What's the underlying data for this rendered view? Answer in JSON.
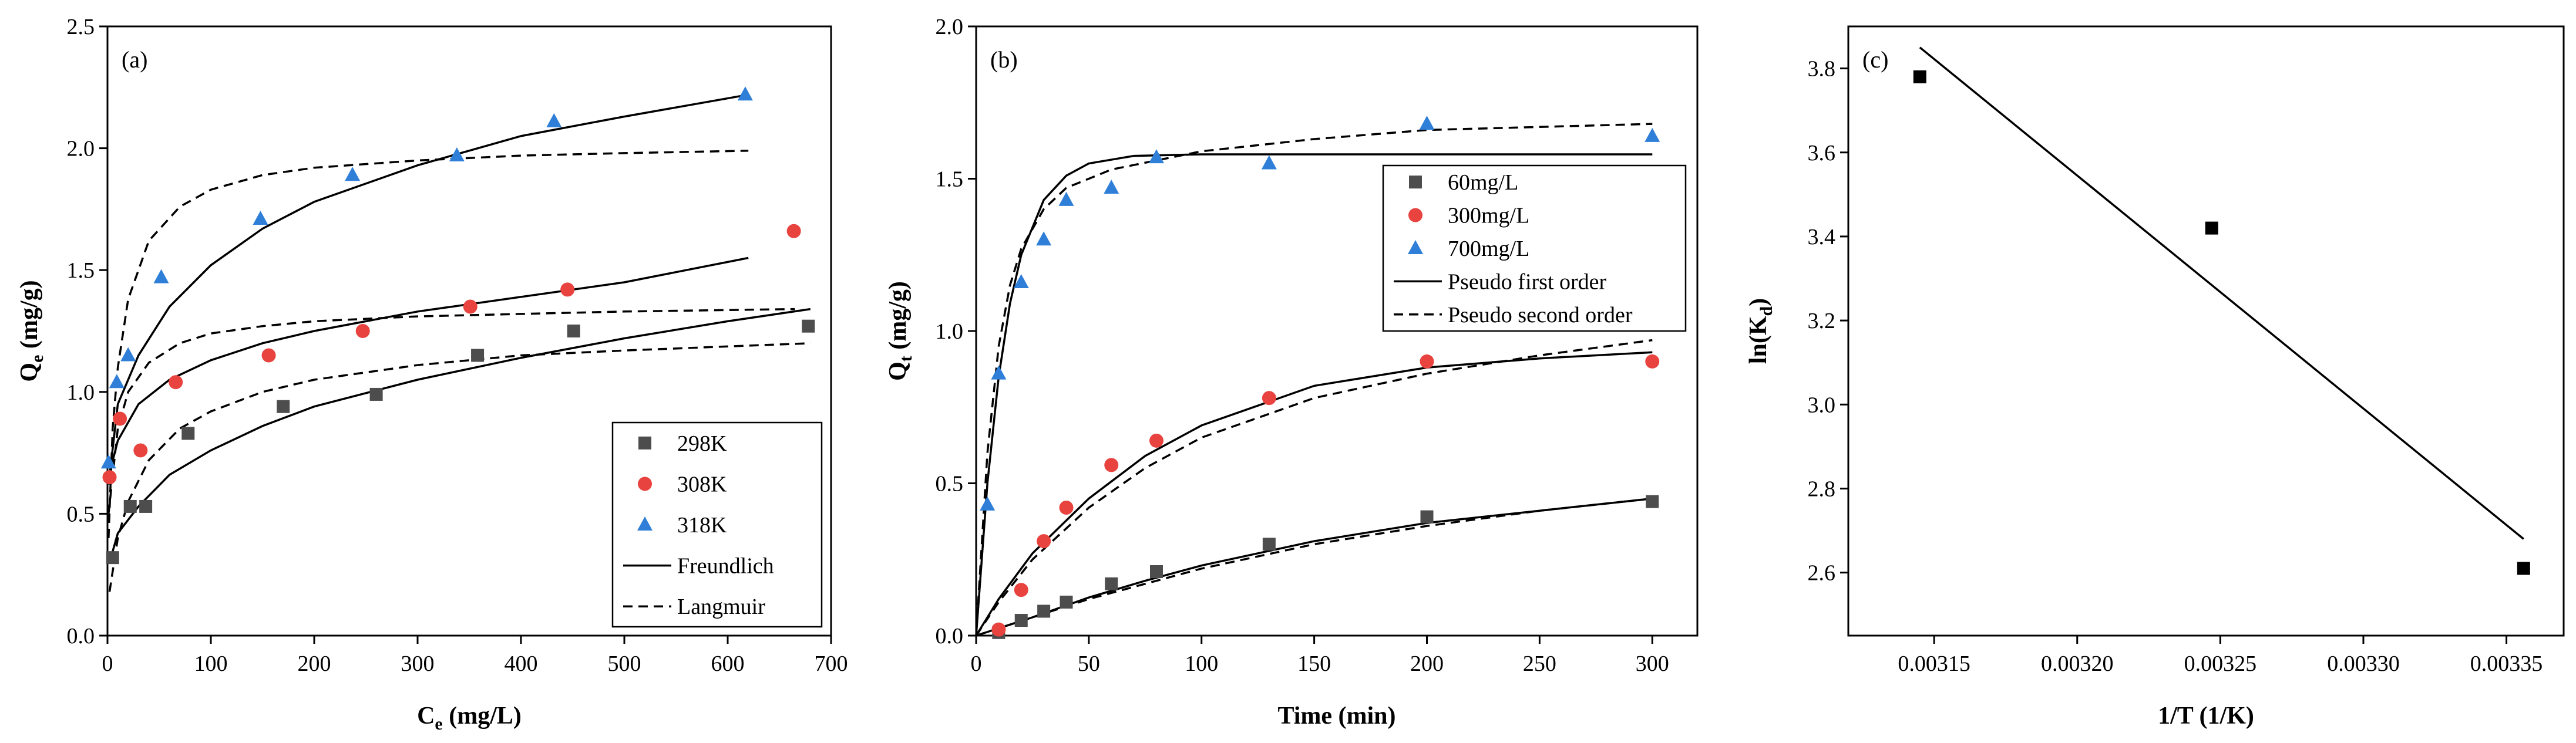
{
  "chart_data": [
    {
      "type": "scatter",
      "panel_label": "(a)",
      "xlabel": "C",
      "xlabel_sub": "e",
      "xlabel_unit": " (mg/L)",
      "ylabel": "Q",
      "ylabel_sub": "e",
      "ylabel_unit": " (mg/g)",
      "xlim": [
        0,
        700
      ],
      "ylim": [
        0,
        2.5
      ],
      "xticks": [
        "0",
        "100",
        "200",
        "300",
        "400",
        "500",
        "600",
        "700"
      ],
      "yticks": [
        "0.0",
        "0.5",
        "1.0",
        "1.5",
        "2.0",
        "2.5"
      ],
      "grid": false,
      "legend_position": "bottom-right",
      "series": [
        {
          "name": "298K",
          "marker": "square",
          "color": "#4d4d4d",
          "points": [
            [
              5,
              0.32
            ],
            [
              22,
              0.53
            ],
            [
              37,
              0.53
            ],
            [
              78,
              0.83
            ],
            [
              170,
              0.94
            ],
            [
              260,
              0.99
            ],
            [
              358,
              1.15
            ],
            [
              451,
              1.25
            ],
            [
              678,
              1.27
            ]
          ]
        },
        {
          "name": "308K",
          "marker": "circle",
          "color": "#e8433f",
          "points": [
            [
              2,
              0.65
            ],
            [
              12,
              0.89
            ],
            [
              32,
              0.76
            ],
            [
              66,
              1.04
            ],
            [
              156,
              1.15
            ],
            [
              247,
              1.25
            ],
            [
              351,
              1.35
            ],
            [
              445,
              1.42
            ],
            [
              664,
              1.66
            ]
          ]
        },
        {
          "name": "318K",
          "marker": "triangle",
          "color": "#2f7fd8",
          "points": [
            [
              1,
              0.71
            ],
            [
              9,
              1.04
            ],
            [
              20,
              1.15
            ],
            [
              52,
              1.47
            ],
            [
              148,
              1.71
            ],
            [
              237,
              1.89
            ],
            [
              338,
              1.97
            ],
            [
              432,
              2.11
            ],
            [
              617,
              2.22
            ]
          ]
        }
      ],
      "fit_lines": [
        {
          "name": "Freundlich",
          "style": "solid",
          "segments": [
            {
              "points": [
                [
                  2,
                  0.3
                ],
                [
                  10,
                  0.42
                ],
                [
                  30,
                  0.53
                ],
                [
                  60,
                  0.66
                ],
                [
                  100,
                  0.76
                ],
                [
                  150,
                  0.86
                ],
                [
                  200,
                  0.94
                ],
                [
                  300,
                  1.05
                ],
                [
                  400,
                  1.14
                ],
                [
                  500,
                  1.22
                ],
                [
                  600,
                  1.29
                ],
                [
                  680,
                  1.34
                ]
              ]
            },
            {
              "points": [
                [
                  1,
                  0.65
                ],
                [
                  10,
                  0.8
                ],
                [
                  30,
                  0.95
                ],
                [
                  60,
                  1.05
                ],
                [
                  100,
                  1.13
                ],
                [
                  150,
                  1.2
                ],
                [
                  200,
                  1.25
                ],
                [
                  300,
                  1.33
                ],
                [
                  400,
                  1.39
                ],
                [
                  500,
                  1.45
                ],
                [
                  620,
                  1.55
                ]
              ]
            },
            {
              "points": [
                [
                  1,
                  0.62
                ],
                [
                  10,
                  0.95
                ],
                [
                  30,
                  1.15
                ],
                [
                  60,
                  1.35
                ],
                [
                  100,
                  1.52
                ],
                [
                  150,
                  1.67
                ],
                [
                  200,
                  1.78
                ],
                [
                  300,
                  1.93
                ],
                [
                  400,
                  2.05
                ],
                [
                  500,
                  2.13
                ],
                [
                  620,
                  2.22
                ]
              ]
            }
          ]
        },
        {
          "name": "Langmuir",
          "style": "dashed",
          "segments": [
            {
              "points": [
                [
                  2,
                  0.18
                ],
                [
                  10,
                  0.4
                ],
                [
                  20,
                  0.55
                ],
                [
                  40,
                  0.72
                ],
                [
                  70,
                  0.85
                ],
                [
                  100,
                  0.92
                ],
                [
                  150,
                  1.0
                ],
                [
                  200,
                  1.05
                ],
                [
                  300,
                  1.11
                ],
                [
                  400,
                  1.15
                ],
                [
                  500,
                  1.17
                ],
                [
                  680,
                  1.2
                ]
              ]
            },
            {
              "points": [
                [
                  1,
                  0.5
                ],
                [
                  10,
                  0.85
                ],
                [
                  20,
                  1.0
                ],
                [
                  40,
                  1.12
                ],
                [
                  70,
                  1.2
                ],
                [
                  100,
                  1.24
                ],
                [
                  150,
                  1.27
                ],
                [
                  200,
                  1.29
                ],
                [
                  300,
                  1.31
                ],
                [
                  400,
                  1.32
                ],
                [
                  500,
                  1.33
                ],
                [
                  665,
                  1.34
                ]
              ]
            },
            {
              "points": [
                [
                  1,
                  0.4
                ],
                [
                  5,
                  0.85
                ],
                [
                  10,
                  1.1
                ],
                [
                  20,
                  1.38
                ],
                [
                  40,
                  1.62
                ],
                [
                  70,
                  1.76
                ],
                [
                  100,
                  1.83
                ],
                [
                  150,
                  1.89
                ],
                [
                  200,
                  1.92
                ],
                [
                  300,
                  1.95
                ],
                [
                  400,
                  1.97
                ],
                [
                  500,
                  1.98
                ],
                [
                  620,
                  1.99
                ]
              ]
            }
          ]
        }
      ]
    },
    {
      "type": "scatter",
      "panel_label": "(b)",
      "xlabel": "Time (min)",
      "ylabel": "Q",
      "ylabel_sub": "t",
      "ylabel_unit": " (mg/g)",
      "xlim": [
        0,
        320
      ],
      "ylim": [
        0,
        2.0
      ],
      "xticks": [
        "0",
        "50",
        "100",
        "150",
        "200",
        "250",
        "300"
      ],
      "yticks": [
        "0.0",
        "0.5",
        "1.0",
        "1.5",
        "2.0"
      ],
      "grid": false,
      "legend_position": "top-right",
      "series": [
        {
          "name": "60mg/L",
          "marker": "square",
          "color": "#4d4d4d",
          "points": [
            [
              10,
              0.01
            ],
            [
              20,
              0.05
            ],
            [
              30,
              0.08
            ],
            [
              40,
              0.11
            ],
            [
              60,
              0.17
            ],
            [
              80,
              0.21
            ],
            [
              130,
              0.3
            ],
            [
              200,
              0.39
            ],
            [
              300,
              0.44
            ]
          ]
        },
        {
          "name": "300mg/L",
          "marker": "circle",
          "color": "#e8433f",
          "points": [
            [
              10,
              0.02
            ],
            [
              20,
              0.15
            ],
            [
              30,
              0.31
            ],
            [
              40,
              0.42
            ],
            [
              60,
              0.56
            ],
            [
              80,
              0.64
            ],
            [
              130,
              0.78
            ],
            [
              200,
              0.9
            ],
            [
              300,
              0.9
            ]
          ]
        },
        {
          "name": "700mg/L",
          "marker": "triangle",
          "color": "#2f7fd8",
          "points": [
            [
              5,
              0.43
            ],
            [
              10,
              0.86
            ],
            [
              20,
              1.16
            ],
            [
              30,
              1.3
            ],
            [
              40,
              1.43
            ],
            [
              60,
              1.47
            ],
            [
              80,
              1.57
            ],
            [
              130,
              1.55
            ],
            [
              200,
              1.68
            ],
            [
              300,
              1.64
            ]
          ]
        }
      ],
      "fit_lines": [
        {
          "name": "Pseudo first order",
          "style": "solid",
          "segments": [
            {
              "points": [
                [
                  0,
                  0
                ],
                [
                  25,
                  0.06
                ],
                [
                  50,
                  0.125
                ],
                [
                  75,
                  0.18
                ],
                [
                  100,
                  0.23
                ],
                [
                  150,
                  0.31
                ],
                [
                  200,
                  0.37
                ],
                [
                  250,
                  0.41
                ],
                [
                  300,
                  0.45
                ]
              ]
            },
            {
              "points": [
                [
                  0,
                  0
                ],
                [
                  10,
                  0.12
                ],
                [
                  25,
                  0.27
                ],
                [
                  50,
                  0.45
                ],
                [
                  75,
                  0.59
                ],
                [
                  100,
                  0.69
                ],
                [
                  150,
                  0.82
                ],
                [
                  200,
                  0.88
                ],
                [
                  250,
                  0.91
                ],
                [
                  300,
                  0.93
                ]
              ]
            },
            {
              "points": [
                [
                  0,
                  0
                ],
                [
                  5,
                  0.5
                ],
                [
                  10,
                  0.85
                ],
                [
                  15,
                  1.09
                ],
                [
                  20,
                  1.25
                ],
                [
                  30,
                  1.43
                ],
                [
                  40,
                  1.51
                ],
                [
                  50,
                  1.55
                ],
                [
                  70,
                  1.575
                ],
                [
                  100,
                  1.58
                ],
                [
                  300,
                  1.58
                ]
              ]
            }
          ]
        },
        {
          "name": "Pseudo second order",
          "style": "dashed",
          "segments": [
            {
              "points": [
                [
                  0,
                  0
                ],
                [
                  25,
                  0.06
                ],
                [
                  50,
                  0.12
                ],
                [
                  75,
                  0.17
                ],
                [
                  100,
                  0.22
                ],
                [
                  150,
                  0.3
                ],
                [
                  200,
                  0.36
                ],
                [
                  250,
                  0.41
                ],
                [
                  300,
                  0.45
                ]
              ]
            },
            {
              "points": [
                [
                  0,
                  0
                ],
                [
                  10,
                  0.11
                ],
                [
                  25,
                  0.25
                ],
                [
                  50,
                  0.42
                ],
                [
                  75,
                  0.55
                ],
                [
                  100,
                  0.65
                ],
                [
                  150,
                  0.78
                ],
                [
                  200,
                  0.86
                ],
                [
                  250,
                  0.92
                ],
                [
                  300,
                  0.97
                ]
              ]
            },
            {
              "points": [
                [
                  0,
                  0
                ],
                [
                  5,
                  0.6
                ],
                [
                  10,
                  0.95
                ],
                [
                  15,
                  1.15
                ],
                [
                  20,
                  1.27
                ],
                [
                  30,
                  1.4
                ],
                [
                  40,
                  1.47
                ],
                [
                  60,
                  1.53
                ],
                [
                  100,
                  1.59
                ],
                [
                  150,
                  1.63
                ],
                [
                  200,
                  1.66
                ],
                [
                  250,
                  1.67
                ],
                [
                  300,
                  1.68
                ]
              ]
            }
          ]
        }
      ]
    },
    {
      "type": "scatter",
      "panel_label": "(c)",
      "xlabel": "1/T (1/K)",
      "ylabel": "ln(K",
      "ylabel_sub": "d",
      "ylabel_unit": ")",
      "xlim": [
        0.00312,
        0.00337
      ],
      "ylim": [
        2.45,
        3.9
      ],
      "xticks": [
        "0.00315",
        "0.00320",
        "0.00325",
        "0.00330",
        "0.00335"
      ],
      "yticks": [
        "2.6",
        "2.8",
        "3.0",
        "3.2",
        "3.4",
        "3.6",
        "3.8"
      ],
      "grid": false,
      "series": [
        {
          "name": "",
          "marker": "square",
          "color": "#000000",
          "points": [
            [
              0.003145,
              3.78
            ],
            [
              0.003247,
              3.42
            ],
            [
              0.003356,
              2.61
            ]
          ]
        }
      ],
      "fit_lines": [
        {
          "name": "",
          "style": "solid",
          "segments": [
            {
              "points": [
                [
                  0.003145,
                  3.85
                ],
                [
                  0.003356,
                  2.68
                ]
              ]
            }
          ]
        }
      ]
    }
  ]
}
